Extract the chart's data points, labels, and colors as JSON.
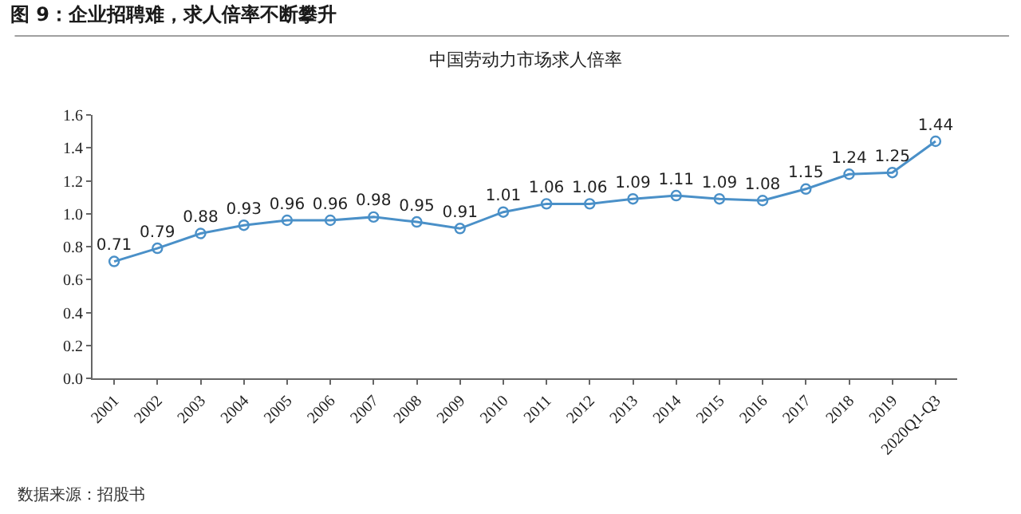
{
  "chart_data": {
    "type": "line",
    "title": "图 9：企业招聘难，求人倍率不断攀升",
    "subtitle": "中国劳动力市场求人倍率",
    "categories": [
      "2001",
      "2002",
      "2003",
      "2004",
      "2005",
      "2006",
      "2007",
      "2008",
      "2009",
      "2010",
      "2011",
      "2012",
      "2013",
      "2014",
      "2015",
      "2016",
      "2017",
      "2018",
      "2019",
      "2020Q1-Q3"
    ],
    "series": [
      {
        "color": "#4a90c8",
        "values": [
          0.71,
          0.79,
          0.88,
          0.93,
          0.96,
          0.96,
          0.98,
          0.95,
          0.91,
          1.01,
          1.06,
          1.06,
          1.09,
          1.11,
          1.09,
          1.08,
          1.15,
          1.24,
          1.25,
          1.44
        ]
      }
    ],
    "ylim": [
      0,
      1.6
    ],
    "yticks": [
      {
        "value": 0,
        "label": "0.0"
      },
      {
        "value": 0.2,
        "label": "0.2"
      },
      {
        "value": 0.4,
        "label": "0.4"
      },
      {
        "value": 0.6,
        "label": "0.6"
      },
      {
        "value": 0.8,
        "label": "0.8"
      },
      {
        "value": 1,
        "label": "1.0"
      },
      {
        "value": 1.2,
        "label": "1.2"
      },
      {
        "value": 1.4,
        "label": "1.4"
      },
      {
        "value": 1.6,
        "label": "1.6"
      }
    ],
    "data_labels": true,
    "marker": "circle",
    "line_style": "solid",
    "grid": false,
    "annotations": [
      "数据来源：招股书"
    ]
  }
}
